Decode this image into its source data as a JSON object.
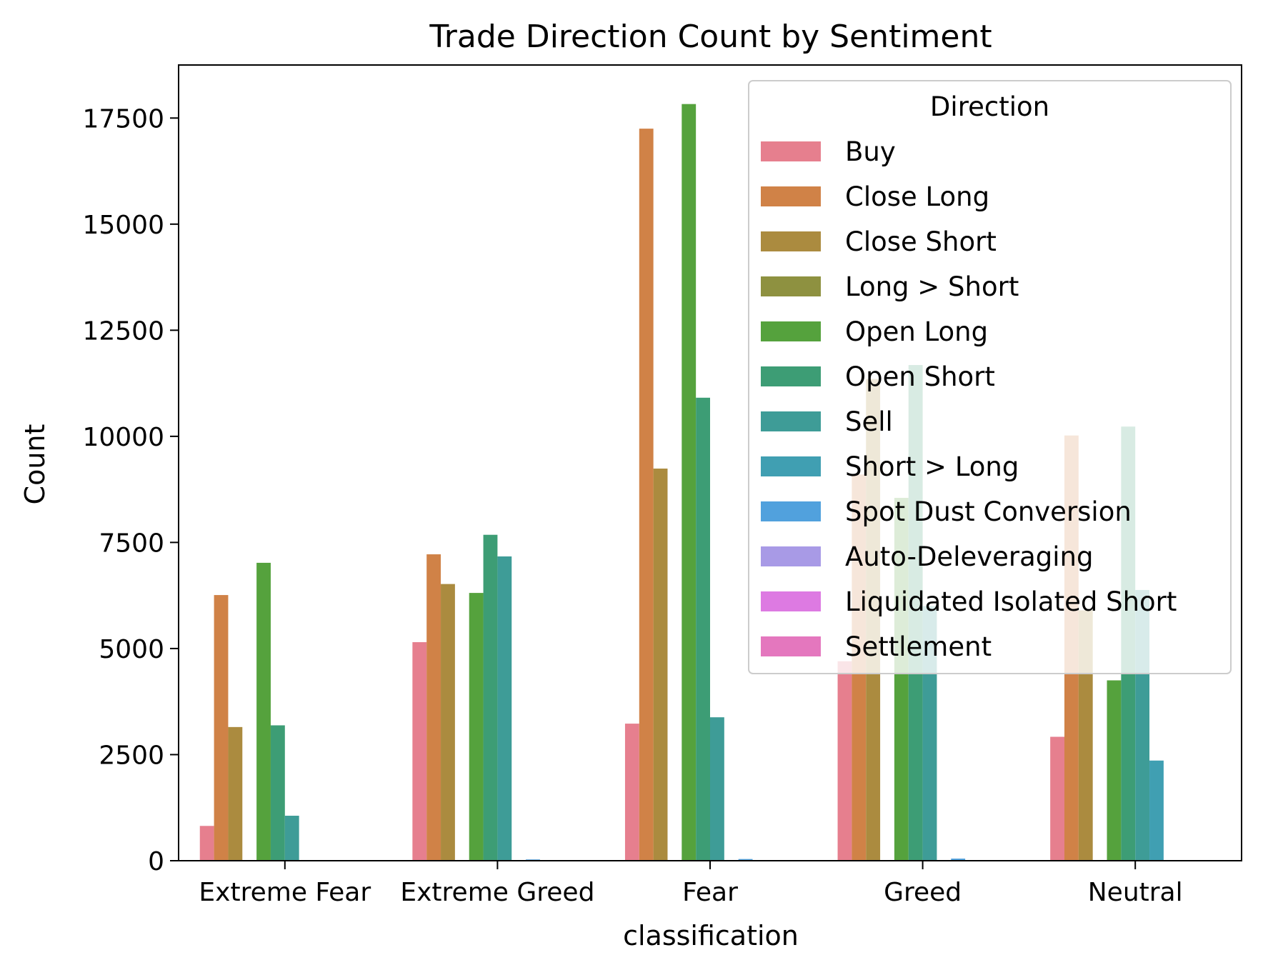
{
  "chart_data": {
    "type": "bar",
    "title": "Trade Direction Count by Sentiment",
    "xlabel": "classification",
    "ylabel": "Count",
    "ylim": [
      0,
      18750
    ],
    "yticks": [
      0,
      2500,
      5000,
      7500,
      10000,
      12500,
      15000,
      17500
    ],
    "grid": false,
    "legend_position": "upper right",
    "legend_title": "Direction",
    "categories": [
      "Extreme Fear",
      "Extreme Greed",
      "Fear",
      "Greed",
      "Neutral"
    ],
    "series": [
      {
        "name": "Buy",
        "color": "#e67f8e",
        "values": [
          820,
          5150,
          3230,
          4700,
          2920
        ]
      },
      {
        "name": "Close Long",
        "color": "#d08247",
        "values": [
          6260,
          7220,
          17250,
          9100,
          10020
        ]
      },
      {
        "name": "Close Short",
        "color": "#ab8b3f",
        "values": [
          3150,
          6520,
          9240,
          11350,
          5900
        ]
      },
      {
        "name": "Long > Short",
        "color": "#8e9140",
        "values": [
          0,
          0,
          0,
          0,
          0
        ]
      },
      {
        "name": "Open Long",
        "color": "#55a23d",
        "values": [
          7020,
          6310,
          17830,
          8550,
          4250
        ]
      },
      {
        "name": "Open Short",
        "color": "#3d9d75",
        "values": [
          3190,
          7680,
          10910,
          11680,
          10230
        ]
      },
      {
        "name": "Sell",
        "color": "#3e9c97",
        "values": [
          1060,
          7170,
          3380,
          6000,
          6380
        ]
      },
      {
        "name": "Short > Long",
        "color": "#409fb2",
        "values": [
          0,
          0,
          0,
          0,
          2360
        ]
      },
      {
        "name": "Spot Dust Conversion",
        "color": "#51a1dd",
        "values": [
          0,
          30,
          40,
          50,
          0
        ]
      },
      {
        "name": "Auto-Deleveraging",
        "color": "#a89ae6",
        "values": [
          0,
          0,
          0,
          0,
          0
        ]
      },
      {
        "name": "Liquidated Isolated Short",
        "color": "#dd7ae2",
        "values": [
          0,
          0,
          0,
          0,
          0
        ]
      },
      {
        "name": "Settlement",
        "color": "#e477be",
        "values": [
          0,
          0,
          0,
          0,
          0
        ]
      }
    ]
  }
}
